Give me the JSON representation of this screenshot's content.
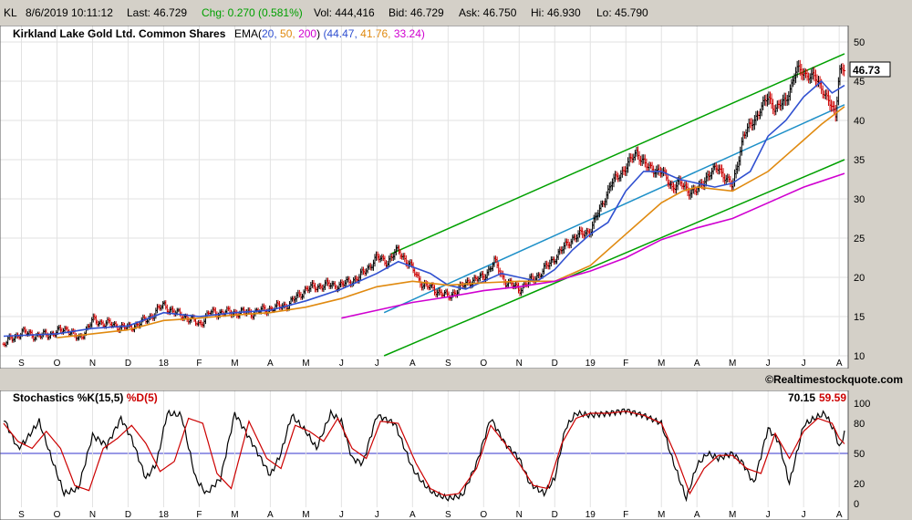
{
  "quote_bar": {
    "symbol": "KL",
    "datetime": "8/6/2019 10:11:12",
    "last": "Last: 46.729",
    "chg": "Chg: 0.270 (0.581%)",
    "vol": "Vol: 444,416",
    "bid": "Bid: 46.729",
    "ask": "Ask: 46.750",
    "hi": "Hi: 46.930",
    "lo": "Lo: 45.790"
  },
  "colors": {
    "ema20": "#3050d0",
    "ema50": "#e08a10",
    "ema200": "#d000d0",
    "channel": "#00a000",
    "trendline": "#1e90c8",
    "stoch_k": "#000000",
    "stoch_d": "#cc0000",
    "up_bar": "#000000",
    "down_bar": "#cc0000"
  },
  "chart_data": [
    {
      "type": "ohlc",
      "title": "Kirkland Lake Gold Ltd. Common Shares",
      "ema_label": "EMA(",
      "ema_periods": [
        "20,",
        "50,",
        "200"
      ],
      "ema_close": ")",
      "ema_values": [
        "(44.47,",
        "41.76,",
        "33.24)"
      ],
      "last_value_label": "46.73",
      "watermark": "©Realtimestockquote.com",
      "ylim": [
        10,
        50
      ],
      "y_ticks": [
        "10",
        "15",
        "20",
        "25",
        "30",
        "35",
        "40",
        "45",
        "50"
      ],
      "x_ticks": [
        "S",
        "O",
        "N",
        "D",
        "18",
        "F",
        "M",
        "A",
        "M",
        "J",
        "J",
        "A",
        "S",
        "O",
        "N",
        "D",
        "19",
        "F",
        "M",
        "A",
        "M",
        "J",
        "J",
        "A"
      ],
      "x_tick_months": [
        0,
        1,
        2,
        3,
        4,
        5,
        6,
        7,
        8,
        9,
        10,
        11,
        12,
        13,
        14,
        15,
        16,
        17,
        18,
        19,
        20,
        21,
        22,
        23
      ],
      "x_range_months": [
        -0.5,
        23.15
      ],
      "close_series": {
        "months": [
          -0.5,
          0,
          0.5,
          1,
          1.3,
          1.6,
          2,
          2.5,
          3,
          3.5,
          4,
          4.3,
          4.6,
          5,
          5.3,
          5.6,
          6,
          6.5,
          7,
          7.5,
          8,
          8.5,
          9,
          9.5,
          10,
          10.3,
          10.6,
          11,
          11.3,
          11.6,
          12,
          12.3,
          12.6,
          13,
          13.3,
          13.6,
          14,
          14.3,
          14.6,
          15,
          15.5,
          16,
          16.3,
          16.6,
          17,
          17.3,
          17.6,
          18,
          18.3,
          18.5,
          18.8,
          19,
          19.3,
          19.6,
          20,
          20.3,
          20.6,
          21,
          21.2,
          21.5,
          21.8,
          22,
          22.3,
          22.6,
          22.9,
          23,
          23.15
        ],
        "values": [
          11.5,
          13.0,
          12.5,
          13.0,
          13.5,
          12.0,
          14.5,
          14.0,
          13.5,
          14.5,
          16.5,
          15.5,
          15.0,
          14.0,
          15.5,
          15.5,
          15.5,
          15.5,
          16.0,
          16.5,
          18.5,
          19.0,
          19.0,
          20.0,
          22.5,
          22.0,
          23.5,
          21.0,
          19.0,
          18.5,
          17.5,
          18.5,
          19.5,
          20.0,
          22.0,
          19.5,
          18.5,
          19.5,
          20.5,
          22.5,
          25.0,
          26.0,
          29.0,
          32.0,
          34.0,
          36.0,
          34.0,
          33.5,
          31.5,
          32.0,
          31.0,
          31.0,
          33.0,
          34.0,
          31.5,
          38.0,
          40.0,
          43.0,
          41.5,
          42.5,
          46.5,
          46.0,
          45.5,
          43.5,
          40.5,
          46.5,
          46.73
        ]
      },
      "ema_series": [
        {
          "name": "20",
          "months": [
            -0.5,
            1,
            2,
            3,
            4,
            5,
            6,
            7,
            8,
            9,
            10,
            10.6,
            11.5,
            12,
            12.5,
            13,
            13.5,
            14,
            14.5,
            15,
            15.5,
            16,
            16.5,
            17,
            17.5,
            18,
            18.5,
            19,
            19.5,
            20,
            20.5,
            21,
            21.5,
            22,
            22.5,
            22.8,
            23.15
          ],
          "values": [
            12.5,
            12.8,
            13.5,
            13.8,
            15.5,
            15.0,
            15.5,
            15.8,
            17.0,
            18.5,
            20.5,
            22.0,
            20.5,
            19.0,
            18.5,
            19.5,
            20.5,
            20.0,
            19.5,
            21.0,
            23.5,
            25.5,
            27.0,
            31.0,
            33.5,
            33.5,
            32.5,
            32.0,
            31.5,
            32.0,
            33.5,
            38.0,
            40.0,
            43.0,
            45.0,
            43.5,
            44.47
          ]
        },
        {
          "name": "50",
          "months": [
            1,
            2,
            3,
            4,
            5,
            6,
            7,
            8,
            9,
            10,
            11,
            12,
            13,
            14,
            15,
            16,
            17,
            18,
            18.6,
            19,
            20,
            21,
            21.5,
            22,
            22.5,
            23.15
          ],
          "values": [
            12.3,
            12.8,
            13.3,
            14.5,
            14.8,
            15.2,
            15.5,
            16.2,
            17.3,
            18.8,
            19.5,
            19.0,
            19.3,
            19.5,
            19.5,
            21.5,
            25.5,
            29.5,
            31.0,
            31.5,
            31.0,
            33.5,
            35.5,
            37.5,
            39.5,
            41.76
          ]
        },
        {
          "name": "200",
          "months": [
            9,
            10,
            11,
            12,
            13,
            14,
            15,
            16,
            17,
            18,
            19,
            20,
            21,
            22,
            23.15
          ],
          "values": [
            14.8,
            15.8,
            16.8,
            17.5,
            18.3,
            18.8,
            19.5,
            20.8,
            22.5,
            24.8,
            26.3,
            27.5,
            29.5,
            31.5,
            33.24
          ]
        }
      ],
      "lines": [
        {
          "name": "channel-upper",
          "from": [
            10.4,
            23.0
          ],
          "to": [
            23.15,
            48.5
          ]
        },
        {
          "name": "channel-lower",
          "from": [
            10.2,
            10.0
          ],
          "to": [
            23.15,
            35.0
          ]
        },
        {
          "name": "trendline",
          "from": [
            10.2,
            15.5
          ],
          "to": [
            23.15,
            42.0
          ]
        }
      ]
    },
    {
      "type": "line",
      "title": "Stochastics %K(15,5)",
      "d_label": "%D(5)",
      "k_value": "70.15",
      "d_value": "59.59",
      "ylim": [
        0,
        100
      ],
      "y_ticks": [
        "0",
        "20",
        "50",
        "80",
        "100"
      ],
      "ref_line": 50,
      "series": [
        {
          "name": "%K",
          "months": [
            -0.5,
            -0.1,
            0.1,
            0.5,
            0.8,
            1.2,
            1.6,
            2,
            2.4,
            2.8,
            3.1,
            3.5,
            3.8,
            4.1,
            4.5,
            4.9,
            5.2,
            5.6,
            6,
            6.5,
            7,
            7.3,
            7.6,
            8,
            8.3,
            8.7,
            9,
            9.3,
            9.6,
            10,
            10.5,
            11,
            11.3,
            11.6,
            12,
            12.4,
            12.8,
            13.2,
            13.6,
            14,
            14.3,
            14.7,
            15,
            15.3,
            15.6,
            16,
            16.5,
            17,
            17.5,
            18,
            18.3,
            18.7,
            19,
            19.3,
            19.6,
            20,
            20.3,
            20.6,
            21,
            21.3,
            21.6,
            22,
            22.3,
            22.6,
            22.9,
            23,
            23.15
          ],
          "values": [
            85,
            55,
            62,
            82,
            50,
            10,
            15,
            68,
            58,
            85,
            65,
            25,
            40,
            90,
            88,
            25,
            10,
            25,
            90,
            60,
            28,
            50,
            88,
            72,
            55,
            90,
            82,
            45,
            40,
            88,
            80,
            35,
            20,
            10,
            5,
            8,
            40,
            85,
            60,
            45,
            20,
            10,
            25,
            75,
            90,
            88,
            90,
            93,
            88,
            80,
            45,
            5,
            38,
            50,
            45,
            50,
            40,
            20,
            75,
            62,
            20,
            78,
            85,
            90,
            70,
            55,
            70.15
          ]
        },
        {
          "name": "%D",
          "months": [
            -0.5,
            -0.1,
            0.3,
            0.7,
            1.1,
            1.5,
            1.9,
            2.3,
            2.7,
            3.1,
            3.5,
            3.9,
            4.3,
            4.7,
            5.1,
            5.5,
            5.9,
            6.4,
            6.9,
            7.3,
            7.7,
            8.1,
            8.5,
            8.9,
            9.3,
            9.7,
            10.1,
            10.6,
            11.1,
            11.5,
            11.9,
            12.3,
            12.8,
            13.2,
            13.6,
            14,
            14.4,
            14.8,
            15.2,
            15.6,
            16,
            16.5,
            17,
            17.5,
            18,
            18.4,
            18.8,
            19.2,
            19.6,
            20,
            20.4,
            20.8,
            21.2,
            21.6,
            22,
            22.4,
            22.8,
            23,
            23.15
          ],
          "values": [
            80,
            62,
            55,
            72,
            55,
            18,
            13,
            55,
            65,
            78,
            60,
            32,
            42,
            85,
            80,
            30,
            15,
            82,
            45,
            35,
            78,
            72,
            62,
            85,
            55,
            45,
            82,
            80,
            40,
            15,
            8,
            10,
            35,
            78,
            60,
            40,
            18,
            15,
            60,
            85,
            90,
            90,
            92,
            88,
            80,
            48,
            10,
            35,
            48,
            48,
            35,
            30,
            70,
            45,
            72,
            85,
            80,
            65,
            59.59
          ]
        }
      ]
    }
  ]
}
